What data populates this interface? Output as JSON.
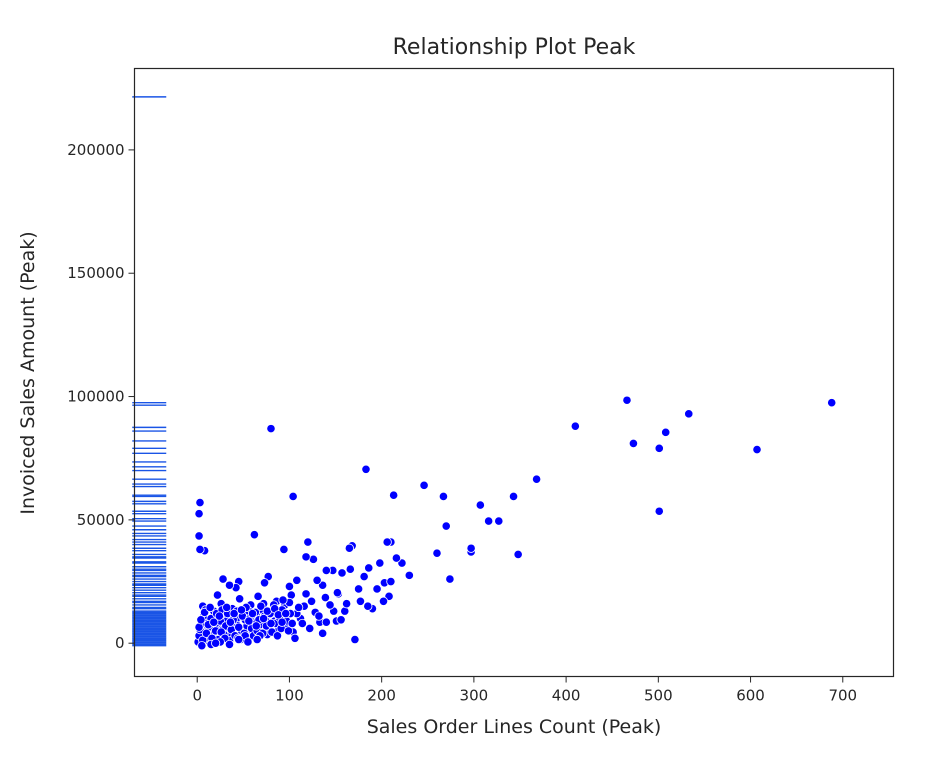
{
  "chart_data": {
    "type": "scatter",
    "title": "Relationship Plot Peak",
    "xlabel": "Sales Order Lines Count (Peak)",
    "ylabel": "Invoiced Sales Amount (Peak)",
    "xlim": [
      -68,
      755
    ],
    "ylim": [
      -13500,
      233000
    ],
    "xticks": [
      0,
      100,
      200,
      300,
      400,
      500,
      600,
      700
    ],
    "yticks": [
      0,
      50000,
      100000,
      150000,
      200000
    ],
    "grid": false,
    "legend": "none",
    "rug_x": -52,
    "colors": {
      "points": "#0000ff",
      "rug": "#1a55e6",
      "frame": "#262626"
    },
    "points": [
      [
        688,
        97500
      ],
      [
        607,
        78500
      ],
      [
        533,
        93000
      ],
      [
        508,
        85500
      ],
      [
        501,
        79000
      ],
      [
        501,
        53500
      ],
      [
        473,
        81000
      ],
      [
        466,
        98500
      ],
      [
        410,
        88000
      ],
      [
        368,
        66500
      ],
      [
        348,
        36000
      ],
      [
        343,
        59500
      ],
      [
        327,
        49500
      ],
      [
        316,
        49500
      ],
      [
        307,
        56000
      ],
      [
        297,
        37000
      ],
      [
        297,
        38500
      ],
      [
        274,
        26000
      ],
      [
        270,
        47500
      ],
      [
        267,
        59500
      ],
      [
        260,
        36500
      ],
      [
        246,
        64000
      ],
      [
        230,
        27500
      ],
      [
        222,
        32500
      ],
      [
        213,
        60000
      ],
      [
        216,
        34500
      ],
      [
        210,
        41000
      ],
      [
        206,
        41000
      ],
      [
        203,
        24500
      ],
      [
        198,
        32500
      ],
      [
        208,
        19000
      ],
      [
        195,
        22000
      ],
      [
        190,
        14000
      ],
      [
        186,
        30500
      ],
      [
        183,
        70500
      ],
      [
        181,
        27000
      ],
      [
        177,
        17000
      ],
      [
        171,
        1500
      ],
      [
        166,
        30000
      ],
      [
        168,
        39500
      ],
      [
        165,
        38500
      ],
      [
        160,
        13000
      ],
      [
        157,
        28500
      ],
      [
        153,
        20000
      ],
      [
        151,
        9000
      ],
      [
        147,
        29500
      ],
      [
        140,
        29500
      ],
      [
        139,
        18500
      ],
      [
        136,
        23500
      ],
      [
        133,
        8500
      ],
      [
        130,
        25500
      ],
      [
        126,
        34000
      ],
      [
        120,
        41000
      ],
      [
        118,
        35000
      ],
      [
        116,
        15000
      ],
      [
        108,
        25500
      ],
      [
        104,
        59500
      ],
      [
        100,
        23000
      ],
      [
        94,
        38000
      ],
      [
        80,
        87000
      ],
      [
        77,
        27000
      ],
      [
        73,
        24500
      ],
      [
        62,
        44000
      ],
      [
        45,
        25000
      ],
      [
        42,
        22500
      ],
      [
        35,
        23500
      ],
      [
        28,
        26000
      ],
      [
        22,
        19500
      ],
      [
        8,
        37500
      ],
      [
        3,
        38000
      ],
      [
        2,
        43500
      ],
      [
        2,
        52500
      ],
      [
        3,
        57000
      ],
      [
        210,
        25000
      ],
      [
        202,
        17000
      ],
      [
        185,
        15000
      ],
      [
        175,
        22000
      ],
      [
        148,
        13000
      ],
      [
        140,
        8500
      ],
      [
        128,
        12500
      ],
      [
        122,
        6000
      ],
      [
        118,
        20000
      ],
      [
        112,
        10000
      ],
      [
        108,
        12000
      ],
      [
        102,
        19500
      ],
      [
        95,
        15500
      ],
      [
        90,
        11000
      ],
      [
        86,
        17000
      ],
      [
        82,
        14000
      ],
      [
        78,
        6000
      ],
      [
        74,
        9500
      ],
      [
        70,
        13500
      ],
      [
        66,
        19000
      ],
      [
        62,
        8500
      ],
      [
        58,
        15500
      ],
      [
        54,
        7000
      ],
      [
        50,
        12500
      ],
      [
        46,
        18000
      ],
      [
        42,
        8000
      ],
      [
        38,
        14000
      ],
      [
        34,
        5000
      ],
      [
        30,
        11000
      ],
      [
        26,
        16000
      ],
      [
        22,
        7500
      ],
      [
        18,
        13000
      ],
      [
        14,
        4500
      ],
      [
        10,
        9500
      ],
      [
        6,
        15000
      ],
      [
        4,
        2000
      ],
      [
        8,
        6000
      ],
      [
        12,
        1000
      ],
      [
        16,
        3500
      ],
      [
        20,
        8000
      ],
      [
        24,
        2500
      ],
      [
        28,
        5500
      ],
      [
        32,
        9000
      ],
      [
        36,
        3000
      ],
      [
        40,
        6500
      ],
      [
        44,
        10500
      ],
      [
        48,
        4000
      ],
      [
        52,
        9500
      ],
      [
        56,
        13000
      ],
      [
        60,
        4500
      ],
      [
        64,
        11500
      ],
      [
        68,
        7500
      ],
      [
        72,
        16000
      ],
      [
        76,
        3500
      ],
      [
        84,
        9000
      ],
      [
        88,
        5000
      ],
      [
        92,
        13500
      ],
      [
        96,
        7500
      ],
      [
        100,
        16500
      ],
      [
        104,
        4500
      ],
      [
        110,
        14500
      ],
      [
        114,
        8000
      ],
      [
        124,
        17000
      ],
      [
        132,
        11000
      ],
      [
        136,
        4000
      ],
      [
        144,
        15500
      ],
      [
        152,
        20500
      ],
      [
        156,
        9500
      ],
      [
        162,
        16000
      ],
      [
        1,
        500
      ],
      [
        2,
        3000
      ],
      [
        3,
        5500
      ],
      [
        5,
        8000
      ],
      [
        7,
        11000
      ],
      [
        9,
        13500
      ],
      [
        11,
        2500
      ],
      [
        13,
        6000
      ],
      [
        15,
        10000
      ],
      [
        17,
        500
      ],
      [
        19,
        4500
      ],
      [
        21,
        12000
      ],
      [
        23,
        1500
      ],
      [
        25,
        9000
      ],
      [
        27,
        13500
      ],
      [
        29,
        3500
      ],
      [
        31,
        7000
      ],
      [
        33,
        12000
      ],
      [
        35,
        1000
      ],
      [
        37,
        5500
      ],
      [
        39,
        9500
      ],
      [
        41,
        3000
      ],
      [
        43,
        13000
      ],
      [
        45,
        6500
      ],
      [
        47,
        1500
      ],
      [
        49,
        11000
      ],
      [
        51,
        4000
      ],
      [
        53,
        14500
      ],
      [
        55,
        2500
      ],
      [
        57,
        10000
      ],
      [
        59,
        6000
      ],
      [
        61,
        3000
      ],
      [
        63,
        12500
      ],
      [
        65,
        5000
      ],
      [
        67,
        9500
      ],
      [
        69,
        15000
      ],
      [
        71,
        4000
      ],
      [
        73,
        11000
      ],
      [
        75,
        7000
      ],
      [
        79,
        12000
      ],
      [
        81,
        4500
      ],
      [
        83,
        15500
      ],
      [
        85,
        8000
      ],
      [
        87,
        3000
      ],
      [
        89,
        10500
      ],
      [
        91,
        6000
      ],
      [
        93,
        17500
      ],
      [
        97,
        9000
      ],
      [
        99,
        5000
      ],
      [
        101,
        12000
      ],
      [
        103,
        8000
      ],
      [
        106,
        2000
      ],
      [
        2,
        6500
      ],
      [
        4,
        9500
      ],
      [
        6,
        1200
      ],
      [
        8,
        12500
      ],
      [
        10,
        4000
      ],
      [
        12,
        7500
      ],
      [
        14,
        14500
      ],
      [
        16,
        2000
      ],
      [
        18,
        8500
      ],
      [
        20,
        5000
      ],
      [
        24,
        11000
      ],
      [
        26,
        4500
      ],
      [
        30,
        2000
      ],
      [
        32,
        14500
      ],
      [
        36,
        8500
      ],
      [
        40,
        12000
      ],
      [
        44,
        2000
      ],
      [
        48,
        13500
      ],
      [
        52,
        3000
      ],
      [
        56,
        9000
      ],
      [
        60,
        12000
      ],
      [
        64,
        7000
      ],
      [
        68,
        3000
      ],
      [
        72,
        10000
      ],
      [
        76,
        13000
      ],
      [
        80,
        8000
      ],
      [
        84,
        14000
      ],
      [
        88,
        11500
      ],
      [
        92,
        8500
      ],
      [
        96,
        12000
      ],
      [
        5,
        -1000
      ],
      [
        15,
        -500
      ],
      [
        25,
        500
      ],
      [
        35,
        -500
      ],
      [
        45,
        1500
      ],
      [
        55,
        500
      ],
      [
        65,
        1500
      ],
      [
        20,
        0
      ]
    ],
    "rug_values": [
      221500,
      97500,
      96500,
      87500,
      86000,
      82000,
      79000,
      77000,
      73500,
      71500,
      70000,
      66500,
      64500,
      63500,
      60000,
      59500,
      57500,
      56500,
      53500,
      52500,
      50500,
      49500,
      47500,
      46000,
      44500,
      43500,
      42000,
      41000,
      40000,
      38500,
      37500,
      36000,
      35000,
      34500,
      33000,
      32500,
      31000,
      30000,
      29500,
      28500,
      27500,
      27000,
      26000,
      25000,
      24000,
      23500,
      22500,
      21500,
      20500,
      19500,
      19000,
      18000,
      17000,
      16500,
      15500,
      14500,
      14000,
      13000,
      12500,
      12000,
      11500,
      11000,
      10500,
      10000,
      9500,
      9000,
      8500,
      8000,
      7500,
      7000,
      6500,
      6000,
      5500,
      5000,
      4500,
      4000,
      3500,
      3000,
      2500,
      2000,
      1500,
      1000,
      500,
      0,
      -500,
      -1000
    ]
  }
}
